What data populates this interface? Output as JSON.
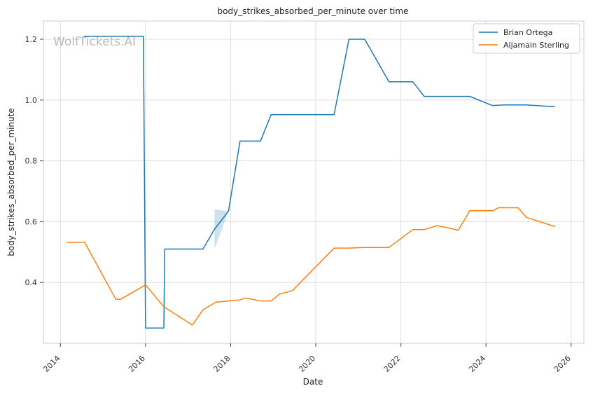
{
  "chart_data": {
    "type": "line",
    "title": "body_strikes_absorbed_per_minute over time",
    "xlabel": "Date",
    "ylabel": "body_strikes_absorbed_per_minute",
    "watermark": "WolfTickets.AI",
    "xlim": [
      2013.6,
      2026.3
    ],
    "ylim": [
      0.2,
      1.26
    ],
    "x_ticks": [
      2014,
      2016,
      2018,
      2020,
      2022,
      2024,
      2026
    ],
    "x_tick_labels": [
      "2014",
      "2016",
      "2018",
      "2020",
      "2022",
      "2024",
      "2026"
    ],
    "y_ticks": [
      0.4,
      0.6,
      0.8,
      1.0,
      1.2
    ],
    "y_tick_labels": [
      "0.4",
      "0.6",
      "0.8",
      "1.0",
      "1.2"
    ],
    "grid": true,
    "legend_position": "top-right",
    "series": [
      {
        "name": "Brian Ortega",
        "color": "#1f77b4",
        "points": [
          [
            2014.55,
            1.21
          ],
          [
            2015.95,
            1.21
          ],
          [
            2016.0,
            0.25
          ],
          [
            2016.43,
            0.25
          ],
          [
            2016.45,
            0.51
          ],
          [
            2017.35,
            0.51
          ],
          [
            2017.62,
            0.575
          ],
          [
            2017.95,
            0.635
          ],
          [
            2018.22,
            0.865
          ],
          [
            2018.7,
            0.865
          ],
          [
            2018.95,
            0.952
          ],
          [
            2020.43,
            0.952
          ],
          [
            2020.78,
            1.2
          ],
          [
            2021.15,
            1.2
          ],
          [
            2021.72,
            1.06
          ],
          [
            2022.28,
            1.06
          ],
          [
            2022.55,
            1.012
          ],
          [
            2023.62,
            1.012
          ],
          [
            2024.15,
            0.982
          ],
          [
            2024.45,
            0.984
          ],
          [
            2024.95,
            0.984
          ],
          [
            2025.62,
            0.978
          ]
        ],
        "band": {
          "x": [
            2017.62,
            2017.95
          ],
          "upper": [
            0.64,
            0.635
          ],
          "lower": [
            0.51,
            0.635
          ]
        }
      },
      {
        "name": "Aljamain Sterling",
        "color": "#ff7f0e",
        "points": [
          [
            2014.15,
            0.532
          ],
          [
            2014.57,
            0.532
          ],
          [
            2015.3,
            0.345
          ],
          [
            2015.42,
            0.345
          ],
          [
            2016.0,
            0.392
          ],
          [
            2016.43,
            0.32
          ],
          [
            2017.1,
            0.26
          ],
          [
            2017.35,
            0.31
          ],
          [
            2017.65,
            0.335
          ],
          [
            2017.95,
            0.339
          ],
          [
            2018.22,
            0.343
          ],
          [
            2018.35,
            0.349
          ],
          [
            2018.72,
            0.339
          ],
          [
            2018.95,
            0.339
          ],
          [
            2019.15,
            0.362
          ],
          [
            2019.45,
            0.373
          ],
          [
            2020.43,
            0.513
          ],
          [
            2020.78,
            0.513
          ],
          [
            2021.15,
            0.515
          ],
          [
            2021.72,
            0.515
          ],
          [
            2022.28,
            0.574
          ],
          [
            2022.55,
            0.574
          ],
          [
            2022.85,
            0.587
          ],
          [
            2023.35,
            0.572
          ],
          [
            2023.62,
            0.636
          ],
          [
            2024.15,
            0.636
          ],
          [
            2024.3,
            0.646
          ],
          [
            2024.75,
            0.646
          ],
          [
            2024.95,
            0.614
          ],
          [
            2025.62,
            0.584
          ]
        ]
      }
    ]
  }
}
